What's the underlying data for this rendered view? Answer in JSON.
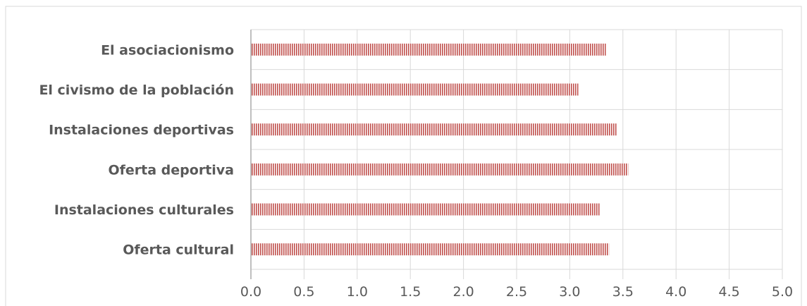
{
  "chart_data": {
    "type": "bar",
    "orientation": "horizontal",
    "categories": [
      "El asociacionismo",
      "El civismo de la población",
      "Instalaciones deportivas",
      "Oferta deportiva",
      "Instalaciones culturales",
      "Oferta cultural"
    ],
    "values": [
      3.34,
      3.08,
      3.44,
      3.55,
      3.28,
      3.37
    ],
    "xlim": [
      0,
      5
    ],
    "xticks": [
      "0.0",
      "0.5",
      "1.0",
      "1.5",
      "2.0",
      "2.5",
      "3.0",
      "3.5",
      "4.0",
      "4.5",
      "5.0"
    ],
    "grid": true,
    "legend": "none",
    "bar_color": "#c0504d",
    "bar_pattern": "vertical-stripes",
    "grid_color": "#d9d9d9",
    "axis_color": "#bfbfbf",
    "label_color": "#595959"
  }
}
